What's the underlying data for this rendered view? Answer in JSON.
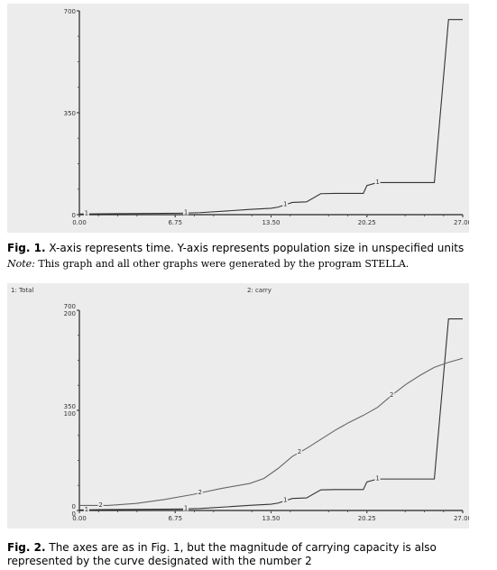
{
  "chart_data": [
    {
      "type": "line",
      "title": "",
      "xlabel": "",
      "ylabel": "",
      "xlim": [
        0,
        27
      ],
      "ylim": [
        0,
        700
      ],
      "xticks": [
        "0.00",
        "6.75",
        "13.50",
        "20.25",
        "27.00"
      ],
      "yticks": [
        "0",
        "350",
        "700"
      ],
      "series": [
        {
          "label": "1",
          "x": [
            0,
            1.5,
            7,
            8.5,
            10.5,
            12,
            13.5,
            14,
            15,
            16,
            17,
            18,
            19,
            20,
            20.25,
            21,
            22,
            23,
            24,
            25,
            26,
            27
          ],
          "y": [
            2,
            3,
            5,
            7,
            13,
            18,
            22,
            26,
            42,
            44,
            72,
            73,
            73,
            73,
            100,
            110,
            110,
            110,
            110,
            110,
            670,
            670
          ],
          "color": "#333333",
          "marker_x": [
            0.5,
            7.5,
            14.5,
            21
          ]
        }
      ]
    },
    {
      "type": "line",
      "title": "",
      "xlabel": "",
      "ylabel": "",
      "xlim": [
        0,
        27
      ],
      "ylim": [
        0,
        700
      ],
      "xticks": [
        "0.00",
        "6.75",
        "13.50",
        "20.25",
        "27.00"
      ],
      "yticks": [
        "0",
        "350",
        "700"
      ],
      "yticks_right": [
        "0",
        "100",
        "200"
      ],
      "legend": [
        "1: Total",
        "2: carry"
      ],
      "series": [
        {
          "name": "Total",
          "label": "1",
          "x": [
            0,
            1.5,
            7,
            8.5,
            10.5,
            12,
            13.5,
            14,
            15,
            16,
            17,
            18,
            19,
            20,
            20.25,
            21,
            22,
            23,
            24,
            25,
            26,
            27
          ],
          "y": [
            2,
            3,
            5,
            7,
            13,
            18,
            22,
            26,
            42,
            44,
            72,
            73,
            73,
            73,
            100,
            110,
            110,
            110,
            110,
            110,
            670,
            670
          ],
          "color": "#333333",
          "marker_x": [
            0.5,
            7.5,
            14.5,
            21
          ]
        },
        {
          "name": "carry",
          "label": "2",
          "secondary_ylim": [
            0,
            200
          ],
          "x": [
            0,
            2,
            4,
            6,
            8,
            10,
            12,
            13,
            14,
            15,
            16,
            17,
            18,
            19,
            20,
            21,
            22,
            23,
            24,
            25,
            26,
            27
          ],
          "y": [
            5,
            5,
            7,
            11,
            16,
            22,
            27,
            32,
            42,
            54,
            62,
            71,
            80,
            88,
            95,
            103,
            115,
            126,
            135,
            143,
            148,
            152
          ],
          "color": "#666666",
          "marker_x": [
            1.5,
            8.5,
            15.5,
            22
          ]
        }
      ]
    }
  ],
  "captions": {
    "fig1_label": "Fig. 1.",
    "fig1_text": "X-axis represents time. Y-axis represents population size in unspecified units",
    "note_label": "Note:",
    "note_text": "This graph and all other graphs were generated by the program STELLA.",
    "fig2_label": "Fig. 2.",
    "fig2_text": "The axes are as in Fig. 1, but the magnitude of carrying capacity is also represented by the curve designated with the number 2"
  }
}
